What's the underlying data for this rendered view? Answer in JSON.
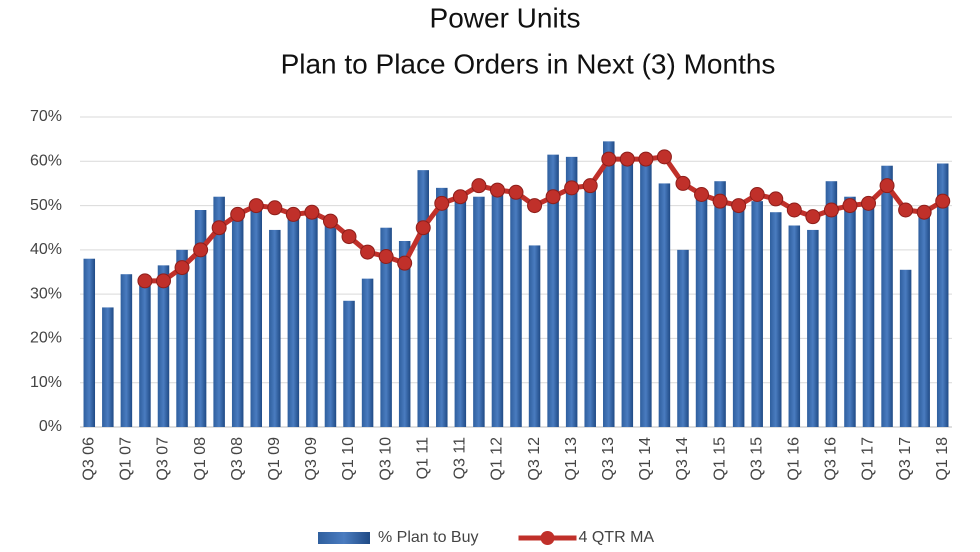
{
  "chart_data": {
    "type": "bar",
    "title": "Power Units",
    "subtitle": "Plan to Place Orders in Next (3) Months",
    "categories": [
      "Q3 06",
      null,
      "Q1 07",
      null,
      "Q3 07",
      null,
      "Q1 08",
      null,
      "Q3 08",
      null,
      "Q1 09",
      null,
      "Q3 09",
      null,
      "Q1 10",
      null,
      "Q3 10",
      null,
      "Q1 11",
      null,
      "Q3 11",
      null,
      "Q1 12",
      null,
      "Q3 12",
      null,
      "Q1 13",
      null,
      "Q3 13",
      null,
      "Q1 14",
      null,
      "Q3 14",
      null,
      "Q1 15",
      null,
      "Q3 15",
      null,
      "Q1 16",
      null,
      "Q3 16",
      null,
      "Q1 17",
      null,
      "Q3 17",
      null,
      "Q1 18"
    ],
    "series": [
      {
        "name": "% Plan to Buy",
        "type": "bar",
        "color": "#2f5f9e",
        "values": [
          38,
          27,
          34.5,
          32,
          36.5,
          40,
          49,
          52,
          47,
          50,
          44.5,
          48,
          48,
          46,
          28.5,
          33.5,
          45,
          42,
          58,
          54,
          51,
          52,
          53,
          52,
          41,
          61.5,
          61,
          54,
          64.5,
          60,
          60,
          55,
          40,
          52,
          55.5,
          50,
          51,
          48.5,
          45.5,
          44.5,
          55.5,
          52,
          51,
          59,
          35.5,
          48,
          59.5
        ]
      },
      {
        "name": "4 QTR MA",
        "type": "line",
        "color": "#c0302a",
        "values": [
          null,
          null,
          null,
          33,
          33,
          36,
          40,
          45,
          48,
          50,
          49.5,
          48,
          48.5,
          46.5,
          43,
          39.5,
          38.5,
          37,
          45,
          50.5,
          52,
          54.5,
          53.5,
          53,
          50,
          52,
          54,
          54.5,
          60.5,
          60.5,
          60.5,
          61,
          55,
          52.5,
          51,
          50,
          52.5,
          51.5,
          49,
          47.5,
          49,
          50,
          50.5,
          54.5,
          49,
          48.5,
          51
        ]
      }
    ],
    "ylim": [
      0,
      70
    ],
    "yticks": [
      {
        "value": 0,
        "label": "0%"
      },
      {
        "value": 10,
        "label": "10%"
      },
      {
        "value": 20,
        "label": "20%"
      },
      {
        "value": 30,
        "label": "30%"
      },
      {
        "value": 40,
        "label": "40%"
      },
      {
        "value": 50,
        "label": "50%"
      },
      {
        "value": 60,
        "label": "60%"
      },
      {
        "value": 70,
        "label": "70%"
      }
    ],
    "grid": true,
    "legend": "bottom"
  }
}
